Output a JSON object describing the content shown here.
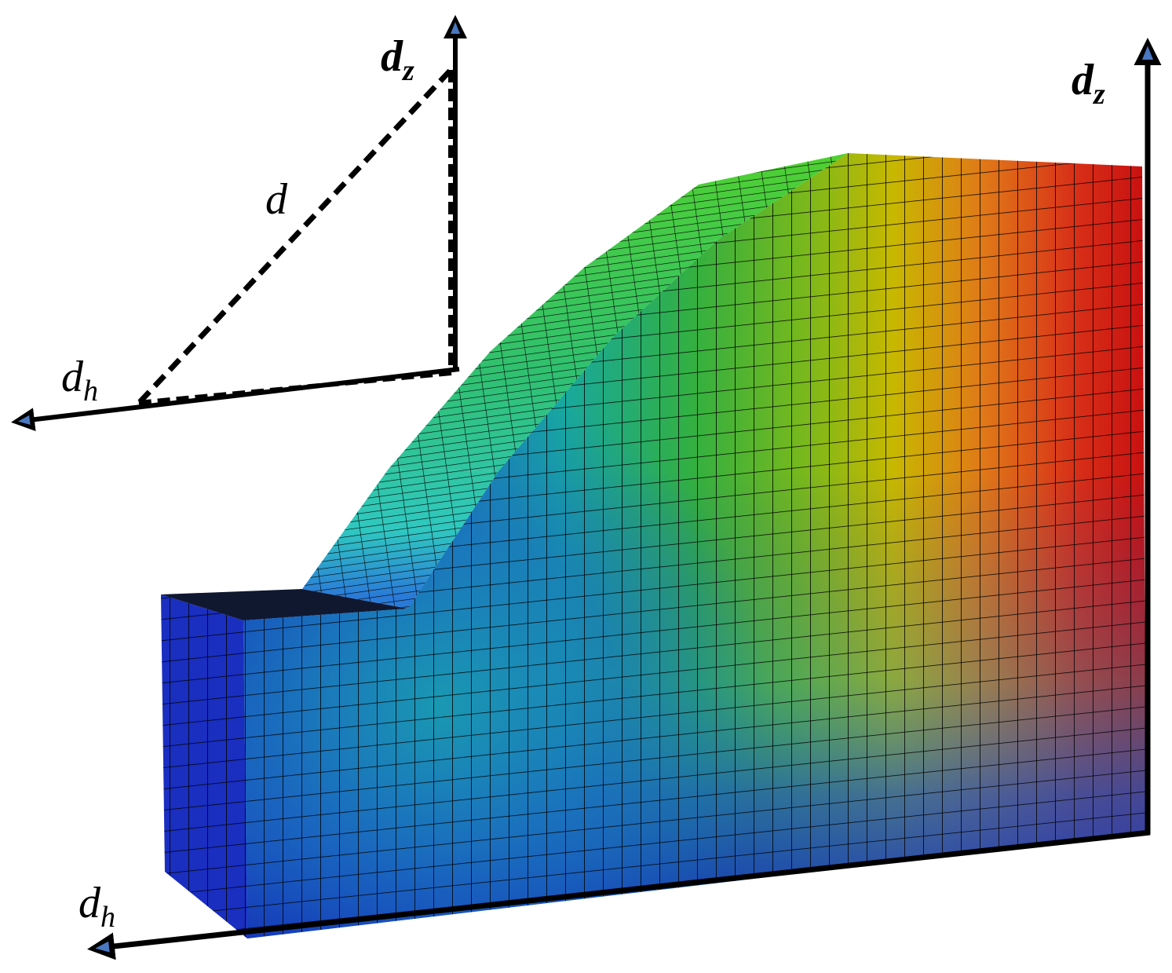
{
  "labels": {
    "top_left_dz": {
      "base": "d",
      "sub": "z"
    },
    "top_left_d": "d",
    "top_left_dh": {
      "base": "d",
      "sub": "h"
    },
    "right_dz": {
      "base": "d",
      "sub": "z"
    },
    "bottom_dh": {
      "base": "d",
      "sub": "h"
    }
  }
}
